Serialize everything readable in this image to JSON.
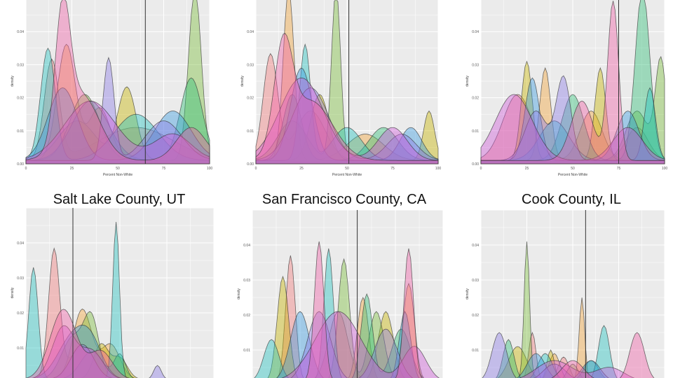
{
  "panel_titles": [
    "",
    "",
    "",
    "Salt Lake County, UT",
    "San Francisco County, CA",
    "Cook County, IL"
  ],
  "axis": {
    "xlabel": "Percent Non-White",
    "ylabel": "density",
    "xticks": [
      "0",
      "25",
      "50",
      "75",
      "100"
    ]
  },
  "palette": [
    "#f47c7c",
    "#f2a43a",
    "#c8b400",
    "#7cbf3b",
    "#2fbf77",
    "#23c3c0",
    "#3a9be0",
    "#8c7ce6",
    "#d05ad8",
    "#f060a8"
  ],
  "chart_data": [
    {
      "type": "area",
      "title": "",
      "xlabel": "Percent Non-White",
      "ylabel": "density",
      "xlim": [
        0,
        100
      ],
      "ylim": [
        0,
        0.05
      ],
      "yticks": [
        "0.00",
        "0.01",
        "0.02",
        "0.03",
        "0.04"
      ],
      "vline": 65,
      "series": [
        {
          "peaks": [
            [
              14,
              0.03,
              4
            ],
            [
              60,
              0.01,
              20
            ]
          ]
        },
        {
          "peaks": [
            [
              22,
              0.035,
              5
            ],
            [
              40,
              0.016,
              6
            ]
          ]
        },
        {
          "peaks": [
            [
              55,
              0.022,
              5
            ],
            [
              28,
              0.012,
              10
            ]
          ]
        },
        {
          "peaks": [
            [
              92,
              0.052,
              3.5
            ],
            [
              32,
              0.02,
              8
            ]
          ]
        },
        {
          "peaks": [
            [
              90,
              0.025,
              6
            ],
            [
              35,
              0.018,
              10
            ]
          ]
        },
        {
          "peaks": [
            [
              12,
              0.034,
              4
            ],
            [
              60,
              0.014,
              12
            ]
          ]
        },
        {
          "peaks": [
            [
              20,
              0.022,
              8
            ],
            [
              80,
              0.015,
              10
            ]
          ]
        },
        {
          "peaks": [
            [
              45,
              0.031,
              3
            ],
            [
              75,
              0.012,
              10
            ]
          ]
        },
        {
          "peaks": [
            [
              35,
              0.018,
              14
            ],
            [
              80,
              0.008,
              10
            ]
          ]
        },
        {
          "peaks": [
            [
              20,
              0.038,
              4
            ],
            [
              30,
              0.02,
              10
            ],
            [
              90,
              0.01,
              8
            ]
          ]
        }
      ]
    },
    {
      "type": "area",
      "title": "",
      "xlabel": "Percent Non-White",
      "ylabel": "density",
      "xlim": [
        0,
        100
      ],
      "ylim": [
        0,
        0.05
      ],
      "yticks": [
        "0.00",
        "0.01",
        "0.02",
        "0.03",
        "0.04"
      ],
      "vline": 51,
      "series": [
        {
          "peaks": [
            [
              8,
              0.032,
              4
            ],
            [
              30,
              0.015,
              8
            ]
          ]
        },
        {
          "peaks": [
            [
              18,
              0.052,
              3
            ],
            [
              60,
              0.008,
              10
            ]
          ]
        },
        {
          "peaks": [
            [
              35,
              0.02,
              5
            ],
            [
              95,
              0.015,
              3
            ]
          ]
        },
        {
          "peaks": [
            [
              44,
              0.052,
              2.5
            ],
            [
              20,
              0.012,
              8
            ]
          ]
        },
        {
          "peaks": [
            [
              20,
              0.02,
              5
            ],
            [
              70,
              0.01,
              8
            ]
          ]
        },
        {
          "peaks": [
            [
              27,
              0.035,
              3
            ],
            [
              50,
              0.01,
              8
            ]
          ]
        },
        {
          "peaks": [
            [
              25,
              0.028,
              6
            ],
            [
              85,
              0.01,
              6
            ]
          ]
        },
        {
          "peaks": [
            [
              30,
              0.022,
              10
            ],
            [
              80,
              0.008,
              8
            ]
          ]
        },
        {
          "peaks": [
            [
              25,
              0.025,
              12
            ],
            [
              75,
              0.01,
              8
            ]
          ]
        },
        {
          "peaks": [
            [
              15,
              0.03,
              5
            ],
            [
              30,
              0.018,
              12
            ]
          ]
        }
      ]
    },
    {
      "type": "area",
      "title": "",
      "xlabel": "Percent Non-White",
      "ylabel": "density",
      "xlim": [
        0,
        100
      ],
      "ylim": [
        0,
        0.05
      ],
      "yticks": [
        "0.00",
        "0.01",
        "0.02",
        "0.03",
        "0.04"
      ],
      "vline": 75,
      "series": [
        {
          "peaks": [
            [
              20,
              0.02,
              8
            ],
            [
              85,
              0.01,
              6
            ]
          ]
        },
        {
          "peaks": [
            [
              35,
              0.028,
              3
            ],
            [
              60,
              0.015,
              6
            ]
          ]
        },
        {
          "peaks": [
            [
              25,
              0.03,
              3
            ],
            [
              65,
              0.028,
              3
            ]
          ]
        },
        {
          "peaks": [
            [
              98,
              0.03,
              3
            ],
            [
              85,
              0.015,
              6
            ]
          ]
        },
        {
          "peaks": [
            [
              88,
              0.052,
              4
            ],
            [
              50,
              0.02,
              6
            ]
          ]
        },
        {
          "peaks": [
            [
              92,
              0.022,
              3
            ],
            [
              40,
              0.012,
              8
            ]
          ]
        },
        {
          "peaks": [
            [
              28,
              0.025,
              4
            ],
            [
              80,
              0.015,
              6
            ]
          ]
        },
        {
          "peaks": [
            [
              45,
              0.025,
              4
            ],
            [
              30,
              0.015,
              6
            ]
          ]
        },
        {
          "peaks": [
            [
              18,
              0.02,
              10
            ],
            [
              80,
              0.01,
              8
            ]
          ]
        },
        {
          "peaks": [
            [
              72,
              0.048,
              3
            ],
            [
              55,
              0.018,
              6
            ]
          ]
        }
      ]
    },
    {
      "type": "area",
      "title": "Salt Lake County, UT",
      "xlabel": "Percent Non-White",
      "ylabel": "density",
      "xlim": [
        0,
        100
      ],
      "ylim": [
        0,
        0.05
      ],
      "yticks": [
        "0.00",
        "0.01",
        "0.02",
        "0.03",
        "0.04"
      ],
      "vline": 25,
      "series": [
        {
          "peaks": [
            [
              15,
              0.037,
              3
            ],
            [
              30,
              0.01,
              6
            ]
          ]
        },
        {
          "peaks": [
            [
              30,
              0.02,
              5
            ],
            [
              45,
              0.01,
              5
            ]
          ]
        },
        {
          "peaks": [
            [
              40,
              0.01,
              4
            ],
            [
              50,
              0.006,
              4
            ]
          ]
        },
        {
          "peaks": [
            [
              35,
              0.016,
              4
            ],
            [
              25,
              0.012,
              6
            ]
          ]
        },
        {
          "peaks": [
            [
              50,
              0.007,
              3
            ],
            [
              35,
              0.008,
              6
            ]
          ]
        },
        {
          "peaks": [
            [
              48,
              0.045,
              1.8
            ],
            [
              4,
              0.032,
              2.5
            ]
          ]
        },
        {
          "peaks": [
            [
              25,
              0.012,
              8
            ],
            [
              35,
              0.008,
              6
            ]
          ]
        },
        {
          "peaks": [
            [
              70,
              0.004,
              2
            ],
            [
              30,
              0.01,
              6
            ]
          ]
        },
        {
          "peaks": [
            [
              20,
              0.015,
              6
            ],
            [
              35,
              0.008,
              6
            ]
          ]
        },
        {
          "peaks": [
            [
              20,
              0.02,
              7
            ],
            [
              40,
              0.008,
              6
            ]
          ]
        }
      ]
    },
    {
      "type": "area",
      "title": "San Francisco County, CA",
      "xlabel": "Percent Non-White",
      "ylabel": "density",
      "xlim": [
        0,
        100
      ],
      "ylim": [
        0,
        0.05
      ],
      "yticks": [
        "0.00",
        "0.01",
        "0.02",
        "0.03",
        "0.04"
      ],
      "vline": 55,
      "series": [
        {
          "peaks": [
            [
              20,
              0.036,
              2.5
            ],
            [
              45,
              0.02,
              5
            ]
          ]
        },
        {
          "peaks": [
            [
              58,
              0.024,
              3
            ],
            [
              82,
              0.028,
              3
            ]
          ]
        },
        {
          "peaks": [
            [
              16,
              0.03,
              3
            ],
            [
              70,
              0.02,
              4
            ]
          ]
        },
        {
          "peaks": [
            [
              48,
              0.035,
              3
            ],
            [
              65,
              0.02,
              4
            ]
          ]
        },
        {
          "peaks": [
            [
              60,
              0.025,
              3
            ],
            [
              78,
              0.015,
              5
            ]
          ]
        },
        {
          "peaks": [
            [
              40,
              0.038,
              2.5
            ],
            [
              10,
              0.012,
              4
            ]
          ]
        },
        {
          "peaks": [
            [
              25,
              0.02,
              5
            ],
            [
              80,
              0.02,
              3
            ]
          ]
        },
        {
          "peaks": [
            [
              35,
              0.02,
              6
            ],
            [
              70,
              0.015,
              6
            ]
          ]
        },
        {
          "peaks": [
            [
              45,
              0.02,
              12
            ],
            [
              85,
              0.01,
              6
            ]
          ]
        },
        {
          "peaks": [
            [
              35,
              0.04,
              2.5
            ],
            [
              82,
              0.038,
              2.5
            ]
          ]
        }
      ]
    },
    {
      "type": "area",
      "title": "Cook County, IL",
      "xlabel": "Percent Non-White",
      "ylabel": "density",
      "xlim": [
        0,
        100
      ],
      "ylim": [
        0,
        0.05
      ],
      "yticks": [
        "0.00",
        "0.01",
        "0.02",
        "0.03",
        "0.04"
      ],
      "vline": 57,
      "series": [
        {
          "peaks": [
            [
              28,
              0.014,
              2
            ],
            [
              45,
              0.007,
              3
            ]
          ]
        },
        {
          "peaks": [
            [
              55,
              0.024,
              1.5
            ],
            [
              40,
              0.008,
              3
            ]
          ]
        },
        {
          "peaks": [
            [
              38,
              0.009,
              2
            ],
            [
              20,
              0.01,
              5
            ]
          ]
        },
        {
          "peaks": [
            [
              25,
              0.04,
              1.5
            ],
            [
              50,
              0.005,
              3
            ]
          ]
        },
        {
          "peaks": [
            [
              15,
              0.012,
              3
            ],
            [
              60,
              0.006,
              4
            ]
          ]
        },
        {
          "peaks": [
            [
              67,
              0.016,
              3
            ],
            [
              35,
              0.008,
              4
            ]
          ]
        },
        {
          "peaks": [
            [
              30,
              0.008,
              5
            ],
            [
              60,
              0.006,
              5
            ]
          ]
        },
        {
          "peaks": [
            [
              10,
              0.014,
              4
            ],
            [
              40,
              0.005,
              6
            ]
          ]
        },
        {
          "peaks": [
            [
              40,
              0.006,
              10
            ],
            [
              70,
              0.004,
              8
            ]
          ]
        },
        {
          "peaks": [
            [
              85,
              0.014,
              4
            ],
            [
              50,
              0.006,
              6
            ]
          ]
        }
      ]
    }
  ]
}
